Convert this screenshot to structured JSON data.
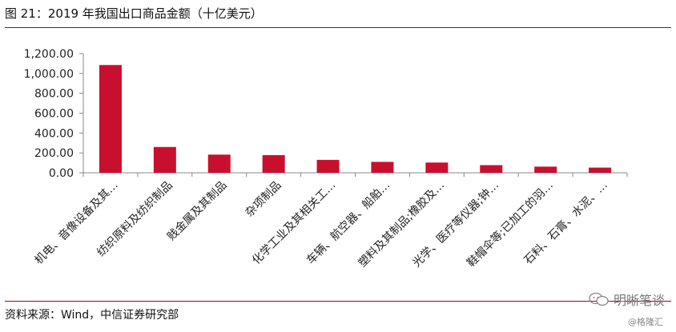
{
  "figure": {
    "title": "图 21：2019 年我国出口商品金额（十亿美元）",
    "source": "资料来源：Wind，中信证券研究部",
    "watermark_text": "明晰笔谈",
    "watermark_sub": "@格隆汇",
    "watermark_icon": "wechat-icon"
  },
  "colors": {
    "bar": "#c8102e",
    "rule": "#b00000"
  },
  "chart_data": {
    "type": "bar",
    "title": "",
    "xlabel": "",
    "ylabel": "",
    "ylim": [
      0,
      1200
    ],
    "yticks": [
      0,
      200,
      400,
      600,
      800,
      1000,
      1200
    ],
    "ytick_labels": [
      "0.00",
      "200.00",
      "400.00",
      "600.00",
      "800.00",
      "1,000.00",
      "1,200.00"
    ],
    "grid": false,
    "legend": "none",
    "categories": [
      "机电、音像设备及其…",
      "纺织原料及纺织制品",
      "贱金属及其制品",
      "杂项制品",
      "化学工业及其相关工…",
      "车辆、航空器、船舶…",
      "塑料及其制品;橡胶及…",
      "光学、医疗等仪器;钟…",
      "鞋帽伞等;已加工的羽…",
      "石料、石膏、水泥、…"
    ],
    "values": [
      1085,
      260,
      183,
      178,
      130,
      110,
      103,
      77,
      62,
      52
    ]
  }
}
